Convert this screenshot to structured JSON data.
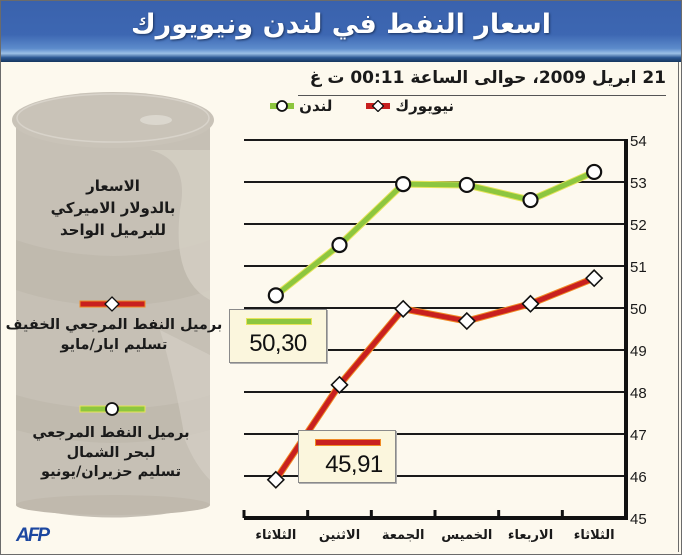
{
  "header": {
    "title": "اسعار النفط في لندن ونيويورك"
  },
  "subtitle": "21 ابريل 2009، حوالى الساعة 00:11 ت غ",
  "legend": {
    "london": {
      "label": "لندن",
      "color": "#8dc63f",
      "marker": "circle"
    },
    "newyork": {
      "label": "نيويورك",
      "color": "#c8201f",
      "marker": "diamond"
    }
  },
  "barrel": {
    "units_label": [
      "الاسعار",
      "بالدولار الاميركي",
      "للبرميل الواحد"
    ],
    "newyork_desc": [
      "برميل النفط المرجعي الخفيف",
      "تسليم ايار/مايو"
    ],
    "london_desc": [
      "برميل النفط المرجعي",
      "لبحر الشمال",
      "تسليم حزيران/يونيو"
    ]
  },
  "callouts": {
    "london_value": "50,30",
    "newyork_value": "45,91"
  },
  "source": "AFP",
  "chart_data": {
    "type": "line",
    "title": "اسعار النفط في لندن ونيويورك",
    "subtitle": "21 ابريل 2009، حوالى الساعة 00:11 ت غ",
    "xlabel": "",
    "ylabel": "الاسعار بالدولار الاميركي للبرميل الواحد",
    "categories": [
      "الثلاثاء",
      "الاثنين",
      "الجمعة",
      "الخميس",
      "الاربعاء",
      "الثلاثاء"
    ],
    "y_ticks": [
      45,
      46,
      47,
      48,
      49,
      50,
      51,
      52,
      53,
      54
    ],
    "ylim": [
      45,
      54
    ],
    "y_axis_position": "right",
    "grid": true,
    "legend_position": "top",
    "series": [
      {
        "name": "لندن",
        "color": "#8dc63f",
        "marker": "circle",
        "values": [
          50.3,
          51.5,
          52.95,
          52.93,
          52.57,
          53.24
        ]
      },
      {
        "name": "نيويورك",
        "color": "#c8201f",
        "marker": "diamond",
        "values": [
          45.91,
          48.17,
          49.98,
          49.69,
          50.1,
          50.71
        ]
      }
    ],
    "annotations": [
      {
        "series": "لندن",
        "point": 0,
        "text": "50,30"
      },
      {
        "series": "نيويورك",
        "point": 0,
        "text": "45,91"
      }
    ]
  }
}
